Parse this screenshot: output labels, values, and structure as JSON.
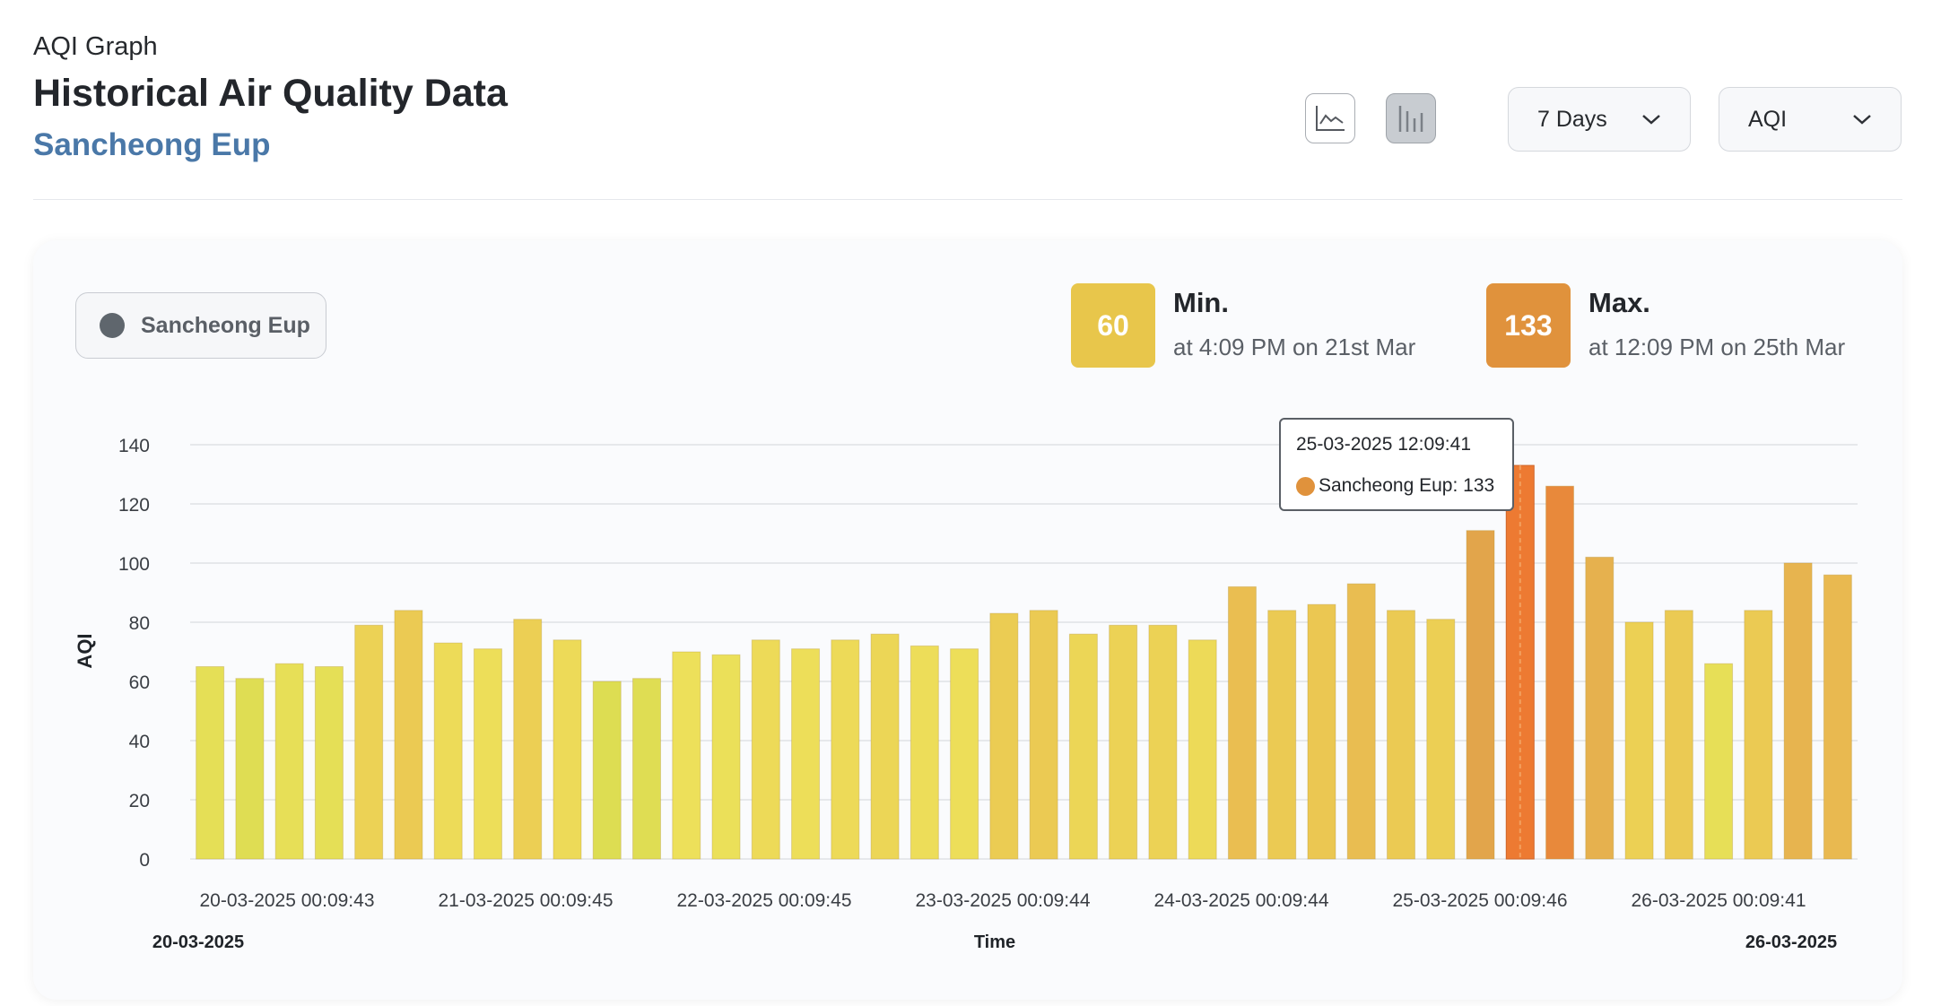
{
  "header": {
    "kicker": "AQI Graph",
    "title": "Historical Air Quality Data",
    "subtitle": "Sancheong Eup"
  },
  "controls": {
    "line_chart_icon": "line-chart-icon",
    "bar_chart_icon": "bar-chart-icon",
    "range_select": "7 Days",
    "metric_select": "AQI"
  },
  "legend": {
    "label": "Sancheong Eup",
    "color": "#5f666d"
  },
  "stats": {
    "min": {
      "value": "60",
      "label": "Min.",
      "detail": "at 4:09 PM on 21st Mar",
      "color": "#e8c64b"
    },
    "max": {
      "value": "133",
      "label": "Max.",
      "detail": "at 12:09 PM on 25th Mar",
      "color": "#e0923c"
    }
  },
  "tooltip": {
    "time": "25-03-2025 12:09:41",
    "series": "Sancheong Eup",
    "value": "133",
    "color": "#e0923c"
  },
  "chart_data": {
    "type": "bar",
    "ylabel": "AQI",
    "xlabel": "Time",
    "ylim": [
      0,
      140
    ],
    "yticks": [
      0,
      20,
      40,
      60,
      80,
      100,
      120,
      140
    ],
    "grid": true,
    "start_label": "20-03-2025",
    "end_label": "26-03-2025",
    "x_tick_labels": [
      "20-03-2025 00:09:43",
      "21-03-2025 00:09:45",
      "22-03-2025 00:09:45",
      "23-03-2025 00:09:44",
      "24-03-2025 00:09:44",
      "25-03-2025 00:09:46",
      "26-03-2025 00:09:41"
    ],
    "highlighted_index": 33,
    "series": [
      {
        "name": "Sancheong Eup",
        "values": [
          65,
          61,
          66,
          65,
          79,
          84,
          73,
          71,
          81,
          74,
          60,
          61,
          70,
          69,
          74,
          71,
          74,
          76,
          72,
          71,
          83,
          84,
          76,
          79,
          79,
          74,
          92,
          84,
          86,
          93,
          84,
          81,
          111,
          133,
          126,
          102,
          80,
          84,
          66,
          84,
          100,
          96
        ]
      }
    ]
  }
}
